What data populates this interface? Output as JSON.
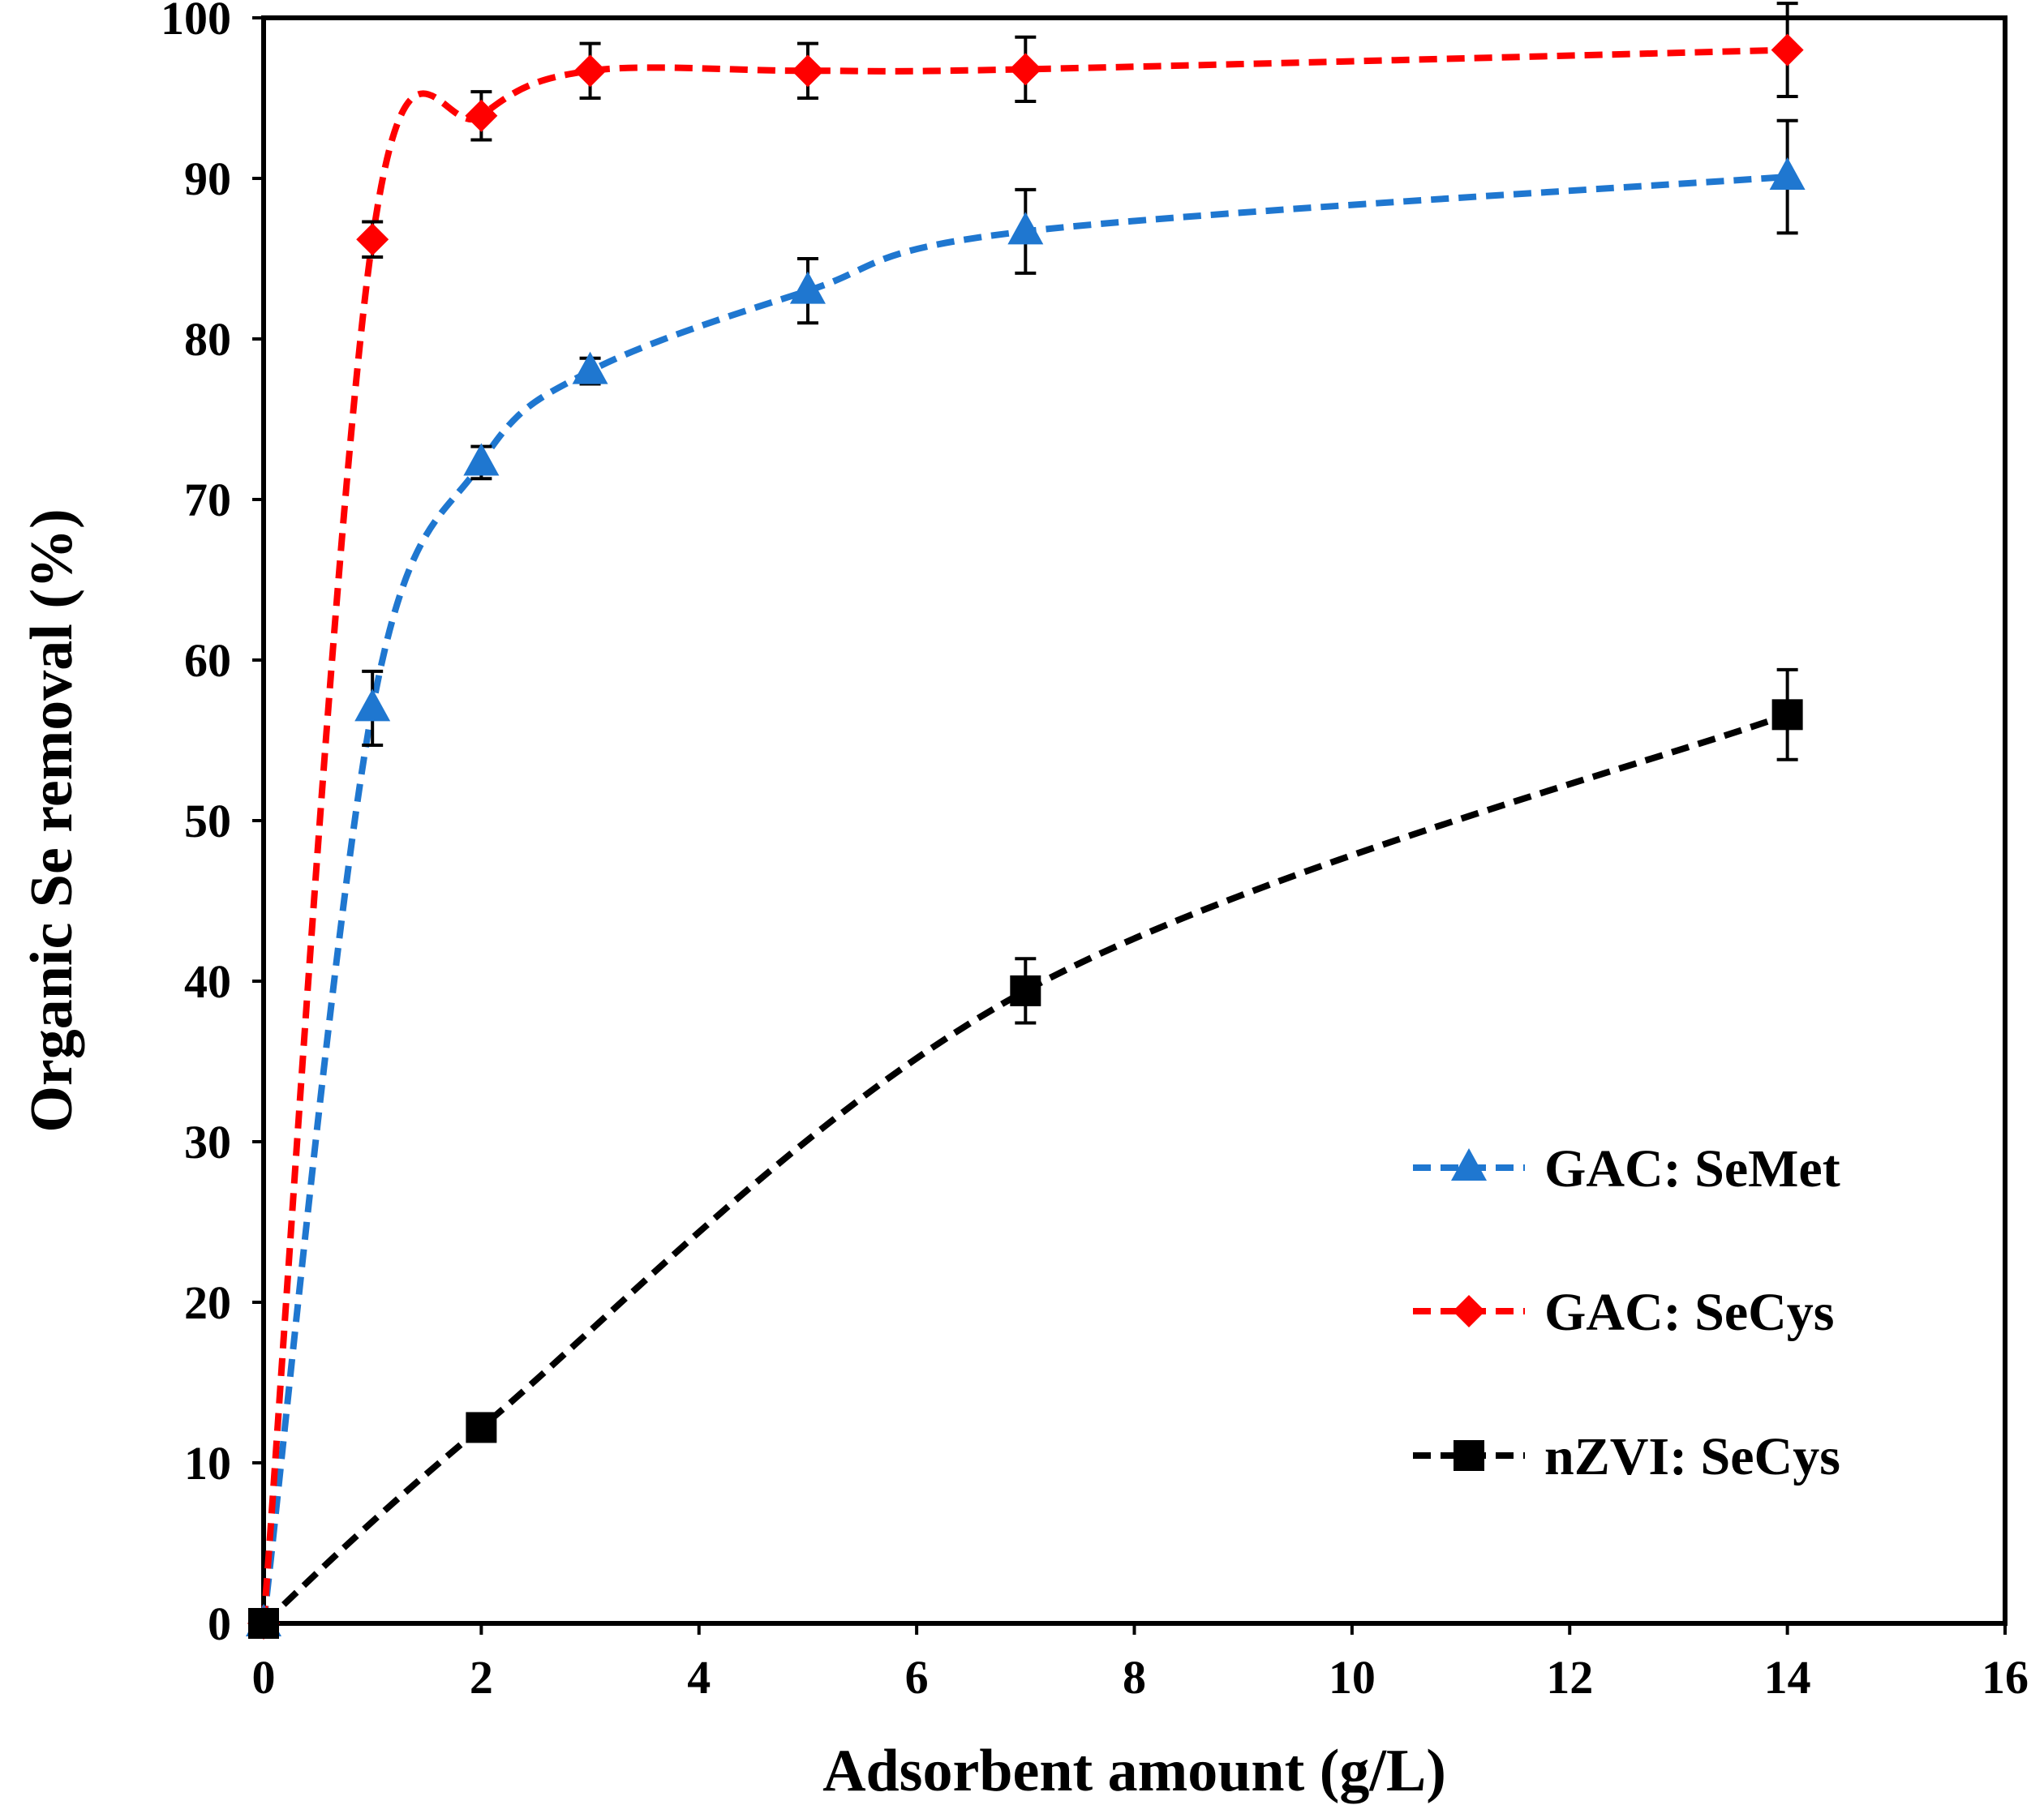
{
  "chart_data": {
    "type": "line",
    "title": "",
    "xlabel": "Adsorbent amount (g/L)",
    "ylabel": "Organic Se removal (%)",
    "xlim": [
      0,
      16
    ],
    "ylim": [
      0,
      100
    ],
    "xticks": [
      "0",
      "2",
      "4",
      "6",
      "8",
      "10",
      "12",
      "14",
      "16"
    ],
    "yticks": [
      "0",
      "10",
      "20",
      "30",
      "40",
      "50",
      "60",
      "70",
      "80",
      "90",
      "100"
    ],
    "grid": false,
    "legend_position": "right",
    "series": [
      {
        "name": "GAC: SeMet",
        "color": "#1f77d0",
        "marker": "triangle",
        "x": [
          0,
          1,
          2,
          3,
          5,
          7,
          14
        ],
        "y": [
          0,
          57.0,
          72.3,
          78.0,
          83.0,
          86.7,
          90.1
        ],
        "error": [
          0,
          2.3,
          1.0,
          0.8,
          2.0,
          2.6,
          3.5
        ]
      },
      {
        "name": "GAC: SeCys",
        "color": "#ff0000",
        "marker": "diamond",
        "x": [
          0,
          1,
          2,
          3,
          5,
          7,
          14
        ],
        "y": [
          0,
          86.2,
          93.9,
          96.7,
          96.7,
          96.8,
          98.0
        ],
        "error": [
          0,
          1.1,
          1.5,
          1.7,
          1.7,
          2.0,
          2.9
        ]
      },
      {
        "name": "nZVI: SeCys",
        "color": "#000000",
        "marker": "square",
        "x": [
          0,
          2,
          7,
          14
        ],
        "y": [
          0,
          12.2,
          39.4,
          56.6
        ],
        "error": [
          0,
          0,
          2.0,
          2.8
        ]
      }
    ]
  }
}
